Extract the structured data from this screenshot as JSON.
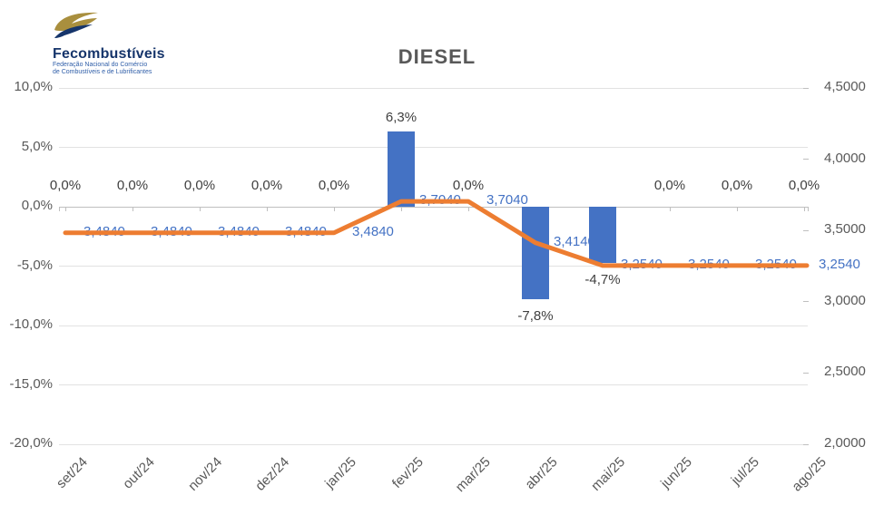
{
  "logo": {
    "name": "Fecombustíveis",
    "subtitle_line1": "Federação Nacional do Comércio",
    "subtitle_line2": "de Combustíveis e de Lubrificantes"
  },
  "title": "DIESEL",
  "colors": {
    "bar": "#4472C4",
    "line": "#ED7D31",
    "bar_label": "#404040",
    "line_label": "#4472C4",
    "axis_label": "#595959",
    "gridline": "#E2E2E2",
    "axis_line": "#BFBFBF",
    "title": "#595959",
    "logo_navy": "#16356B",
    "logo_gold": "#A98F3E"
  },
  "chart_data": {
    "type": "combo",
    "title": "DIESEL",
    "categories": [
      "set/24",
      "out/24",
      "nov/24",
      "dez/24",
      "jan/25",
      "fev/25",
      "mar/25",
      "abr/25",
      "mai/25",
      "jun/25",
      "jul/25",
      "ago/25"
    ],
    "series": [
      {
        "id": "pct_change_bars",
        "type": "bar",
        "axis": "left",
        "color": "#4472C4",
        "values": [
          0,
          0,
          0,
          0,
          0,
          6.3,
          0,
          -7.8,
          -4.7,
          0,
          0,
          0
        ],
        "labels": [
          "0,0%",
          "0,0%",
          "0,0%",
          "0,0%",
          "0,0%",
          "6,3%",
          "0,0%",
          "-7,8%",
          "-4,7%",
          "0,0%",
          "0,0%",
          "0,0%"
        ]
      },
      {
        "id": "price_line",
        "type": "line",
        "axis": "right",
        "color": "#ED7D31",
        "values": [
          3.484,
          3.484,
          3.484,
          3.484,
          3.484,
          3.704,
          3.704,
          3.414,
          3.254,
          3.254,
          3.254,
          3.254
        ],
        "labels": [
          "3,4840",
          "3,4840",
          "3,4840",
          "3,4840",
          "3,4840",
          "3,7040",
          "3,7040",
          "3,4140",
          "3,2540",
          "3,2540",
          "3,2540",
          "3,2540"
        ]
      }
    ],
    "left_axis": {
      "values": [
        10,
        5,
        0,
        -5,
        -10,
        -15,
        -20
      ],
      "labels": [
        "10,0%",
        "5,0%",
        "0,0%",
        "-5,0%",
        "-10,0%",
        "-15,0%",
        "-20,0%"
      ],
      "range": [
        -20,
        10
      ]
    },
    "right_axis": {
      "values": [
        4.5,
        4.0,
        3.5,
        3.0,
        2.5,
        2.0
      ],
      "labels": [
        "4,5000",
        "4,0000",
        "3,5000",
        "3,0000",
        "2,5000",
        "2,0000"
      ],
      "range": [
        2.0,
        4.5
      ]
    },
    "grid": true,
    "legend": "none"
  }
}
